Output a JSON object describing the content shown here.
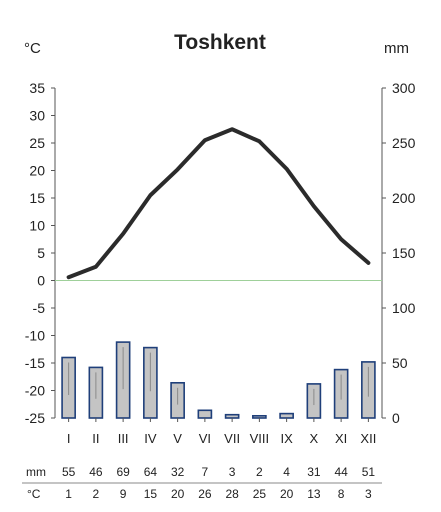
{
  "chart_data": {
    "type": "climate_diagram",
    "title": "Toshkent",
    "left_unit": "°C",
    "right_unit": "mm",
    "categories": [
      "I",
      "II",
      "III",
      "IV",
      "V",
      "VI",
      "VII",
      "VIII",
      "IX",
      "X",
      "XI",
      "XII"
    ],
    "temperature": {
      "type": "line",
      "values": [
        0.6,
        2.5,
        8.5,
        15.5,
        20.2,
        25.5,
        27.5,
        25.3,
        20.3,
        13.5,
        7.5,
        3.2
      ],
      "ylim": [
        -25,
        35
      ],
      "ticks": [
        "35",
        "30",
        "25",
        "20",
        "15",
        "10",
        "5",
        "0",
        "-5",
        "-10",
        "-15",
        "-20",
        "-25"
      ],
      "color": "#2b2b2b"
    },
    "precipitation": {
      "type": "bar",
      "values": [
        55,
        46,
        69,
        64,
        32,
        7,
        3,
        2,
        4,
        31,
        44,
        51
      ],
      "ylim": [
        0,
        300
      ],
      "ticks": [
        "300",
        "250",
        "200",
        "150",
        "100",
        "50",
        "0"
      ],
      "bar_fill": "#c4c4c4",
      "bar_stroke": "#1f3f7a"
    },
    "zero_line_color": "#9fd09a",
    "grid": false,
    "table": {
      "mm_label": "mm",
      "c_label": "°C",
      "mm_values": [
        "55",
        "46",
        "69",
        "64",
        "32",
        "7",
        "3",
        "2",
        "4",
        "31",
        "44",
        "51"
      ],
      "c_values": [
        "1",
        "2",
        "9",
        "15",
        "20",
        "26",
        "28",
        "25",
        "20",
        "13",
        "8",
        "3"
      ]
    }
  }
}
